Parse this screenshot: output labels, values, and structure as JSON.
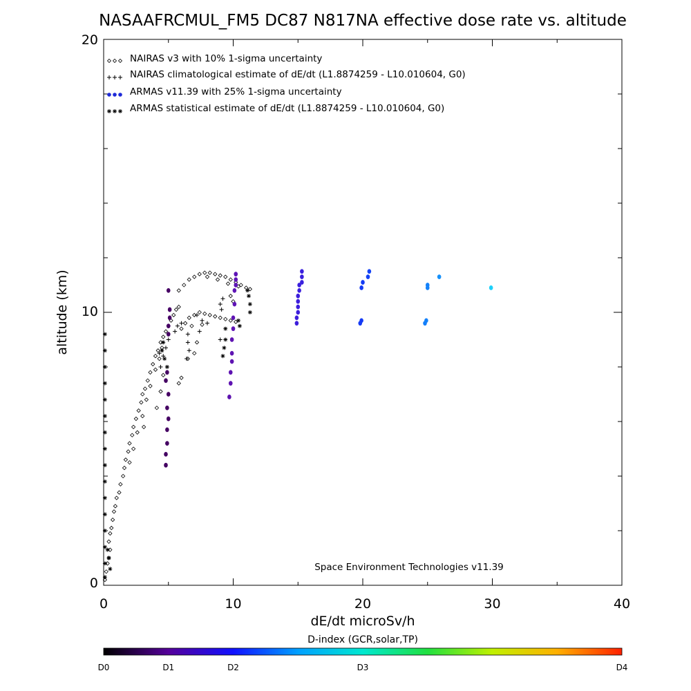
{
  "chart_data": {
    "type": "scatter",
    "title": "NASAAFRCMUL_FM5 DC87 N817NA effective dose rate vs. altitude",
    "xlabel": "dE/dt microSv/h",
    "ylabel": "altitude (km)",
    "xlim": [
      0,
      40
    ],
    "ylim": [
      0,
      20
    ],
    "x_ticks": [
      "0",
      "10",
      "20",
      "30",
      "40"
    ],
    "y_ticks": [
      "0",
      "10",
      "20"
    ],
    "grid": false,
    "legend_position": "top-left",
    "credit": "Space Environment Technologies v11.39",
    "series": [
      {
        "name": "NAIRAS v3 with 10% 1-sigma uncertainty",
        "symbol": "diamond",
        "color": "#000000",
        "points": [
          [
            0.1,
            0.2
          ],
          [
            0.2,
            0.5
          ],
          [
            0.3,
            0.8
          ],
          [
            0.4,
            1.0
          ],
          [
            0.5,
            1.3
          ],
          [
            0.4,
            1.6
          ],
          [
            0.5,
            1.9
          ],
          [
            0.6,
            2.1
          ],
          [
            0.7,
            2.4
          ],
          [
            0.8,
            2.7
          ],
          [
            0.9,
            2.9
          ],
          [
            1.0,
            3.2
          ],
          [
            1.2,
            3.4
          ],
          [
            1.3,
            3.7
          ],
          [
            1.5,
            4.0
          ],
          [
            1.6,
            4.3
          ],
          [
            1.7,
            4.6
          ],
          [
            1.9,
            4.9
          ],
          [
            2.0,
            5.2
          ],
          [
            2.2,
            5.5
          ],
          [
            2.3,
            5.8
          ],
          [
            2.5,
            6.1
          ],
          [
            2.7,
            6.4
          ],
          [
            2.9,
            6.7
          ],
          [
            3.0,
            7.0
          ],
          [
            3.2,
            7.2
          ],
          [
            3.4,
            7.5
          ],
          [
            3.6,
            7.8
          ],
          [
            3.8,
            8.1
          ],
          [
            4.0,
            8.4
          ],
          [
            4.2,
            8.6
          ],
          [
            4.4,
            8.9
          ],
          [
            4.6,
            9.1
          ],
          [
            4.8,
            9.3
          ],
          [
            5.0,
            9.5
          ],
          [
            5.2,
            9.7
          ],
          [
            5.4,
            9.9
          ],
          [
            5.6,
            10.1
          ],
          [
            5.8,
            10.2
          ],
          [
            2.0,
            4.5
          ],
          [
            2.3,
            5.0
          ],
          [
            2.6,
            5.6
          ],
          [
            3.0,
            6.2
          ],
          [
            3.3,
            6.8
          ],
          [
            3.6,
            7.3
          ],
          [
            4.0,
            7.9
          ],
          [
            4.3,
            8.3
          ],
          [
            4.5,
            8.7
          ],
          [
            4.1,
            6.5
          ],
          [
            4.4,
            7.1
          ],
          [
            4.6,
            7.7
          ],
          [
            3.1,
            5.8
          ],
          [
            5.8,
            10.8
          ],
          [
            6.2,
            11.0
          ],
          [
            6.6,
            11.2
          ],
          [
            7.0,
            11.3
          ],
          [
            7.4,
            11.4
          ],
          [
            7.8,
            11.45
          ],
          [
            8.2,
            11.45
          ],
          [
            8.6,
            11.4
          ],
          [
            9.0,
            11.35
          ],
          [
            9.4,
            11.3
          ],
          [
            9.8,
            11.2
          ],
          [
            10.2,
            11.1
          ],
          [
            10.6,
            11.0
          ],
          [
            11.0,
            10.9
          ],
          [
            11.3,
            10.85
          ],
          [
            8.0,
            11.3
          ],
          [
            8.8,
            11.2
          ],
          [
            9.6,
            11.05
          ],
          [
            10.4,
            10.95
          ],
          [
            6.0,
            9.4
          ],
          [
            6.3,
            9.6
          ],
          [
            6.6,
            9.8
          ],
          [
            7.0,
            9.9
          ],
          [
            7.4,
            10.0
          ],
          [
            7.8,
            9.95
          ],
          [
            8.2,
            9.9
          ],
          [
            8.6,
            9.85
          ],
          [
            9.0,
            9.8
          ],
          [
            9.4,
            9.75
          ],
          [
            9.8,
            9.7
          ],
          [
            10.2,
            9.65
          ],
          [
            6.8,
            9.5
          ],
          [
            7.6,
            9.55
          ],
          [
            7.0,
            8.5
          ],
          [
            7.2,
            8.9
          ],
          [
            6.5,
            8.3
          ],
          [
            6.0,
            7.6
          ],
          [
            5.8,
            7.4
          ],
          [
            10.0,
            10.4
          ],
          [
            9.8,
            10.6
          ]
        ]
      },
      {
        "name": "NAIRAS climatological estimate of dE/dt (L1.8874259 - L10.010604, G0)",
        "symbol": "plus",
        "color": "#000000",
        "points": [
          [
            4.4,
            8.0
          ],
          [
            4.6,
            8.4
          ],
          [
            4.8,
            8.7
          ],
          [
            5.0,
            9.0
          ],
          [
            4.3,
            8.5
          ],
          [
            6.5,
            8.9
          ],
          [
            6.6,
            8.6
          ],
          [
            6.4,
            8.3
          ],
          [
            5.5,
            9.3
          ],
          [
            5.7,
            9.5
          ],
          [
            6.0,
            9.6
          ],
          [
            7.2,
            9.9
          ],
          [
            7.6,
            9.7
          ],
          [
            8.0,
            9.6
          ],
          [
            9.0,
            10.3
          ],
          [
            9.1,
            10.1
          ],
          [
            9.0,
            9.0
          ],
          [
            9.2,
            10.5
          ],
          [
            6.5,
            9.2
          ],
          [
            7.4,
            9.3
          ]
        ]
      },
      {
        "name": "ARMAS v11.39 with 25% 1-sigma uncertainty",
        "symbol": "dot",
        "color": "#1e2ad8",
        "points": [
          [
            4.8,
            4.4
          ],
          [
            4.8,
            4.8
          ],
          [
            4.9,
            5.2
          ],
          [
            4.9,
            5.7
          ],
          [
            5.0,
            6.1
          ],
          [
            4.9,
            6.5
          ],
          [
            5.0,
            7.0
          ],
          [
            4.8,
            7.5
          ],
          [
            4.9,
            7.8
          ],
          [
            5.0,
            9.2
          ],
          [
            5.0,
            9.5
          ],
          [
            5.1,
            9.8
          ],
          [
            5.1,
            10.1
          ],
          [
            5.0,
            10.8
          ],
          [
            9.7,
            6.9
          ],
          [
            9.8,
            7.4
          ],
          [
            9.8,
            7.8
          ],
          [
            9.9,
            8.2
          ],
          [
            9.9,
            8.5
          ],
          [
            9.9,
            9.0
          ],
          [
            10.0,
            9.4
          ],
          [
            10.0,
            9.8
          ],
          [
            10.1,
            10.3
          ],
          [
            10.1,
            10.8
          ],
          [
            10.2,
            11.0
          ],
          [
            10.2,
            11.2
          ],
          [
            10.2,
            11.4
          ],
          [
            14.9,
            9.6
          ],
          [
            14.9,
            9.8
          ],
          [
            15.0,
            10.0
          ],
          [
            15.0,
            10.2
          ],
          [
            15.0,
            10.4
          ],
          [
            15.0,
            10.6
          ],
          [
            15.1,
            10.8
          ],
          [
            15.1,
            11.0
          ],
          [
            15.3,
            11.1
          ],
          [
            15.3,
            11.3
          ],
          [
            15.3,
            11.5
          ],
          [
            19.8,
            9.6
          ],
          [
            19.9,
            9.7
          ],
          [
            19.9,
            10.9
          ],
          [
            20.0,
            11.1
          ],
          [
            20.4,
            11.3
          ],
          [
            20.5,
            11.5
          ],
          [
            24.8,
            9.6
          ],
          [
            24.9,
            9.7
          ],
          [
            25.0,
            10.9
          ],
          [
            25.0,
            11.0
          ],
          [
            25.9,
            11.3
          ],
          [
            29.9,
            10.9
          ]
        ]
      },
      {
        "name": "ARMAS statistical estimate of dE/dt (L1.8874259 - L10.010604, G0)",
        "symbol": "asterisk",
        "color": "#000000",
        "points": [
          [
            0.1,
            0.3
          ],
          [
            0.1,
            0.8
          ],
          [
            0.1,
            1.4
          ],
          [
            0.1,
            2.0
          ],
          [
            0.1,
            2.6
          ],
          [
            0.1,
            3.2
          ],
          [
            0.1,
            3.8
          ],
          [
            0.1,
            4.4
          ],
          [
            0.1,
            5.0
          ],
          [
            0.1,
            5.6
          ],
          [
            0.1,
            6.2
          ],
          [
            0.1,
            6.8
          ],
          [
            0.1,
            7.4
          ],
          [
            0.1,
            8.0
          ],
          [
            0.1,
            8.6
          ],
          [
            0.1,
            9.2
          ],
          [
            0.4,
            1.0
          ],
          [
            0.3,
            1.3
          ],
          [
            0.5,
            0.6
          ],
          [
            4.5,
            8.6
          ],
          [
            4.6,
            8.9
          ],
          [
            4.7,
            8.3
          ],
          [
            4.9,
            8.0
          ],
          [
            9.2,
            8.4
          ],
          [
            9.3,
            8.7
          ],
          [
            9.4,
            9.0
          ],
          [
            9.4,
            9.4
          ],
          [
            10.4,
            9.7
          ],
          [
            10.5,
            9.5
          ],
          [
            11.3,
            10.0
          ],
          [
            11.3,
            10.3
          ],
          [
            11.2,
            10.6
          ],
          [
            11.1,
            10.8
          ]
        ]
      }
    ],
    "colorbar": {
      "title": "D-index (GCR,solar,TP)",
      "labels": [
        {
          "text": "D0",
          "value": 0
        },
        {
          "text": "D1",
          "value": 0.5
        },
        {
          "text": "D2",
          "value": 1.0
        },
        {
          "text": "D3",
          "value": 2.0
        },
        {
          "text": "D4",
          "value": 4.0
        }
      ]
    }
  }
}
